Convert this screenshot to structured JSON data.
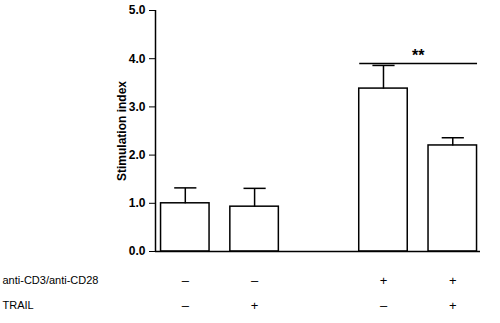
{
  "chart_data": {
    "type": "bar",
    "ylabel": "Stimulation index",
    "categories": [
      null,
      null,
      null,
      null
    ],
    "values": [
      1.0,
      0.93,
      3.38,
      2.2
    ],
    "errors": [
      0.32,
      0.38,
      0.48,
      0.16
    ],
    "color": "#ffffff",
    "ylim": [
      0,
      5
    ],
    "yticks": [
      0,
      1,
      2,
      3,
      4,
      5
    ],
    "tick_labels": "y",
    "conditions": [
      {
        "name": "anti-CD3/anti-CD28",
        "values": [
          "–",
          "–",
          "+",
          "+"
        ]
      },
      {
        "name": "TRAIL",
        "values": [
          "–",
          "+",
          "–",
          "+"
        ]
      }
    ],
    "annotations": [
      {
        "text": "**",
        "from": 2,
        "to": 3,
        "y": 3.9
      }
    ]
  }
}
